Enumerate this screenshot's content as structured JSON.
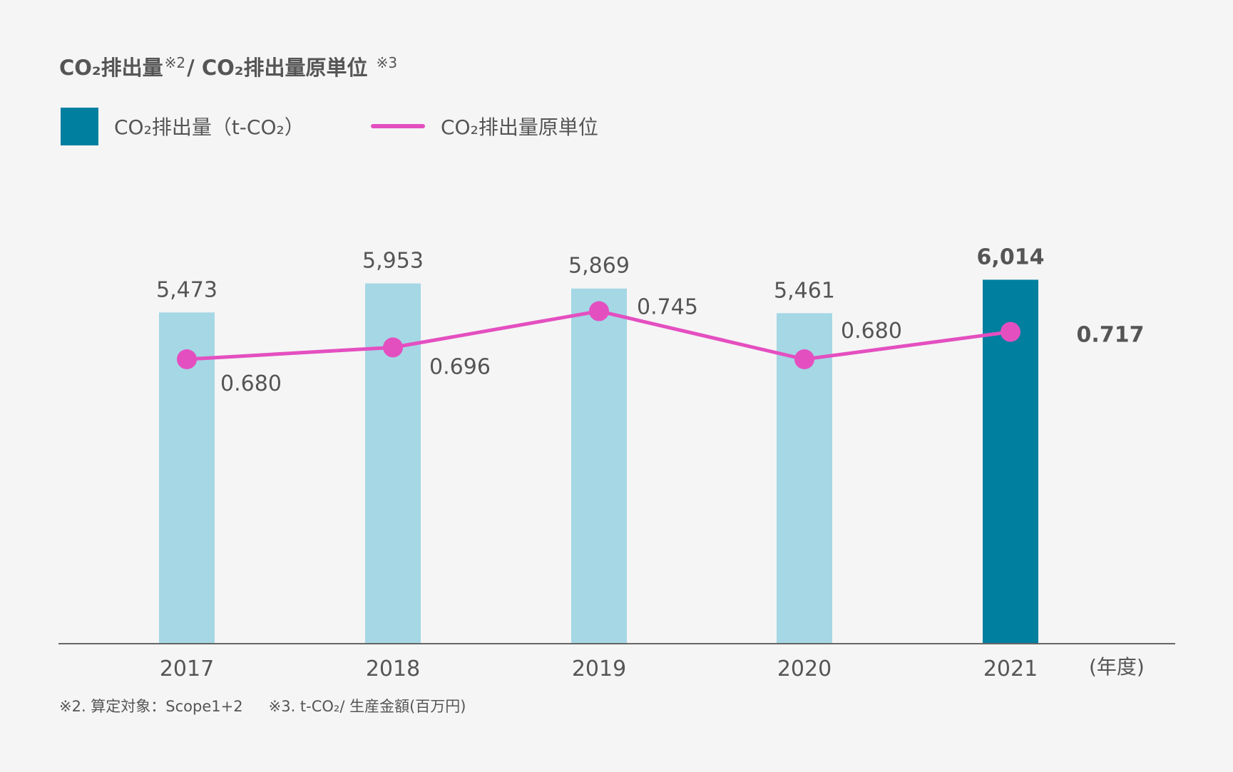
{
  "title": {
    "part1": "CO₂排出量",
    "note1": "※2",
    "part2": "/ CO₂排出量原単位",
    "note2": "※3"
  },
  "legend": {
    "bar_label": "CO₂排出量（t-CO₂）",
    "line_label": "CO₂排出量原単位"
  },
  "chart_data": {
    "type": "bar",
    "categories": [
      "2017",
      "2018",
      "2019",
      "2020",
      "2021"
    ],
    "x_unit_label": "(年度)",
    "series": [
      {
        "name": "CO₂排出量（t-CO₂）",
        "type": "bar",
        "values": [
          5473,
          5953,
          5869,
          5461,
          6014
        ],
        "labels": [
          "5,473",
          "5,953",
          "5,869",
          "5,461",
          "6,014"
        ],
        "highlight_index": 4
      },
      {
        "name": "CO₂排出量原単位",
        "type": "line",
        "values": [
          0.68,
          0.696,
          0.745,
          0.68,
          0.717
        ],
        "labels": [
          "0.680",
          "0.696",
          "0.745",
          "0.680",
          "0.717"
        ],
        "highlight_index": 4
      }
    ],
    "colors": {
      "bar": "#a5d7e5",
      "bar_highlight": "#007f9f",
      "line": "#e44fc0",
      "axis": "#666666",
      "text": "#555555"
    },
    "grid": false
  },
  "footnotes": {
    "note2": "※2. 算定対象：Scope1+2",
    "note3": "※3. t-CO₂/ 生産金額(百万円)"
  }
}
